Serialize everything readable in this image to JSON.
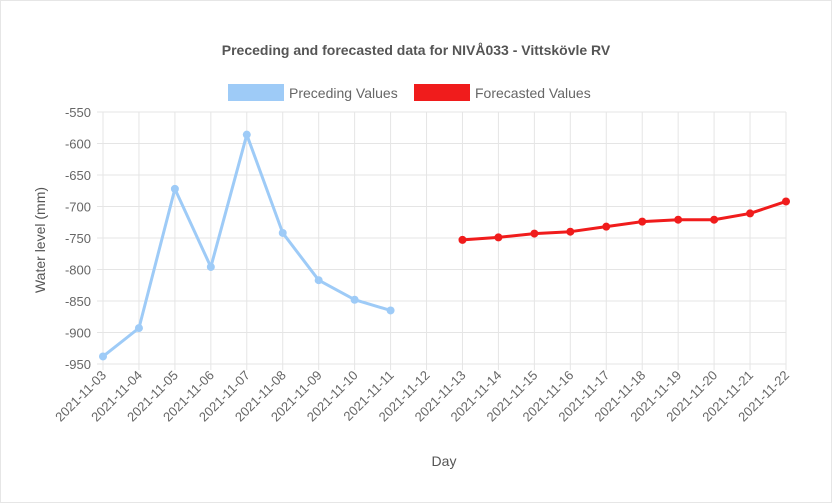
{
  "chart_data": {
    "type": "line",
    "title": "Preceding and forecasted data for NIVÅ033 - Vittskövle RV",
    "xlabel": "Day",
    "ylabel": "Water level (mm)",
    "ylim": [
      -950,
      -550
    ],
    "yticks": [
      -550,
      -600,
      -650,
      -700,
      -750,
      -800,
      -850,
      -900,
      -950
    ],
    "categories": [
      "2021-11-03",
      "2021-11-04",
      "2021-11-05",
      "2021-11-06",
      "2021-11-07",
      "2021-11-08",
      "2021-11-09",
      "2021-11-10",
      "2021-11-11",
      "2021-11-12",
      "2021-11-13",
      "2021-11-14",
      "2021-11-15",
      "2021-11-16",
      "2021-11-17",
      "2021-11-18",
      "2021-11-19",
      "2021-11-20",
      "2021-11-21",
      "2021-11-22"
    ],
    "grid": true,
    "legend_position": "top",
    "series": [
      {
        "name": "Preceding Values",
        "color": "#9ecbf7",
        "values": [
          -938,
          -893,
          -672,
          -796,
          -586,
          -742,
          -817,
          -848,
          -865,
          null,
          null,
          null,
          null,
          null,
          null,
          null,
          null,
          null,
          null,
          null
        ]
      },
      {
        "name": "Forecasted Values",
        "color": "#f01c1c",
        "values": [
          null,
          null,
          null,
          null,
          null,
          null,
          null,
          null,
          null,
          null,
          -753,
          -749,
          -743,
          -740,
          -732,
          -724,
          -721,
          -721,
          -711,
          -692
        ]
      }
    ]
  }
}
